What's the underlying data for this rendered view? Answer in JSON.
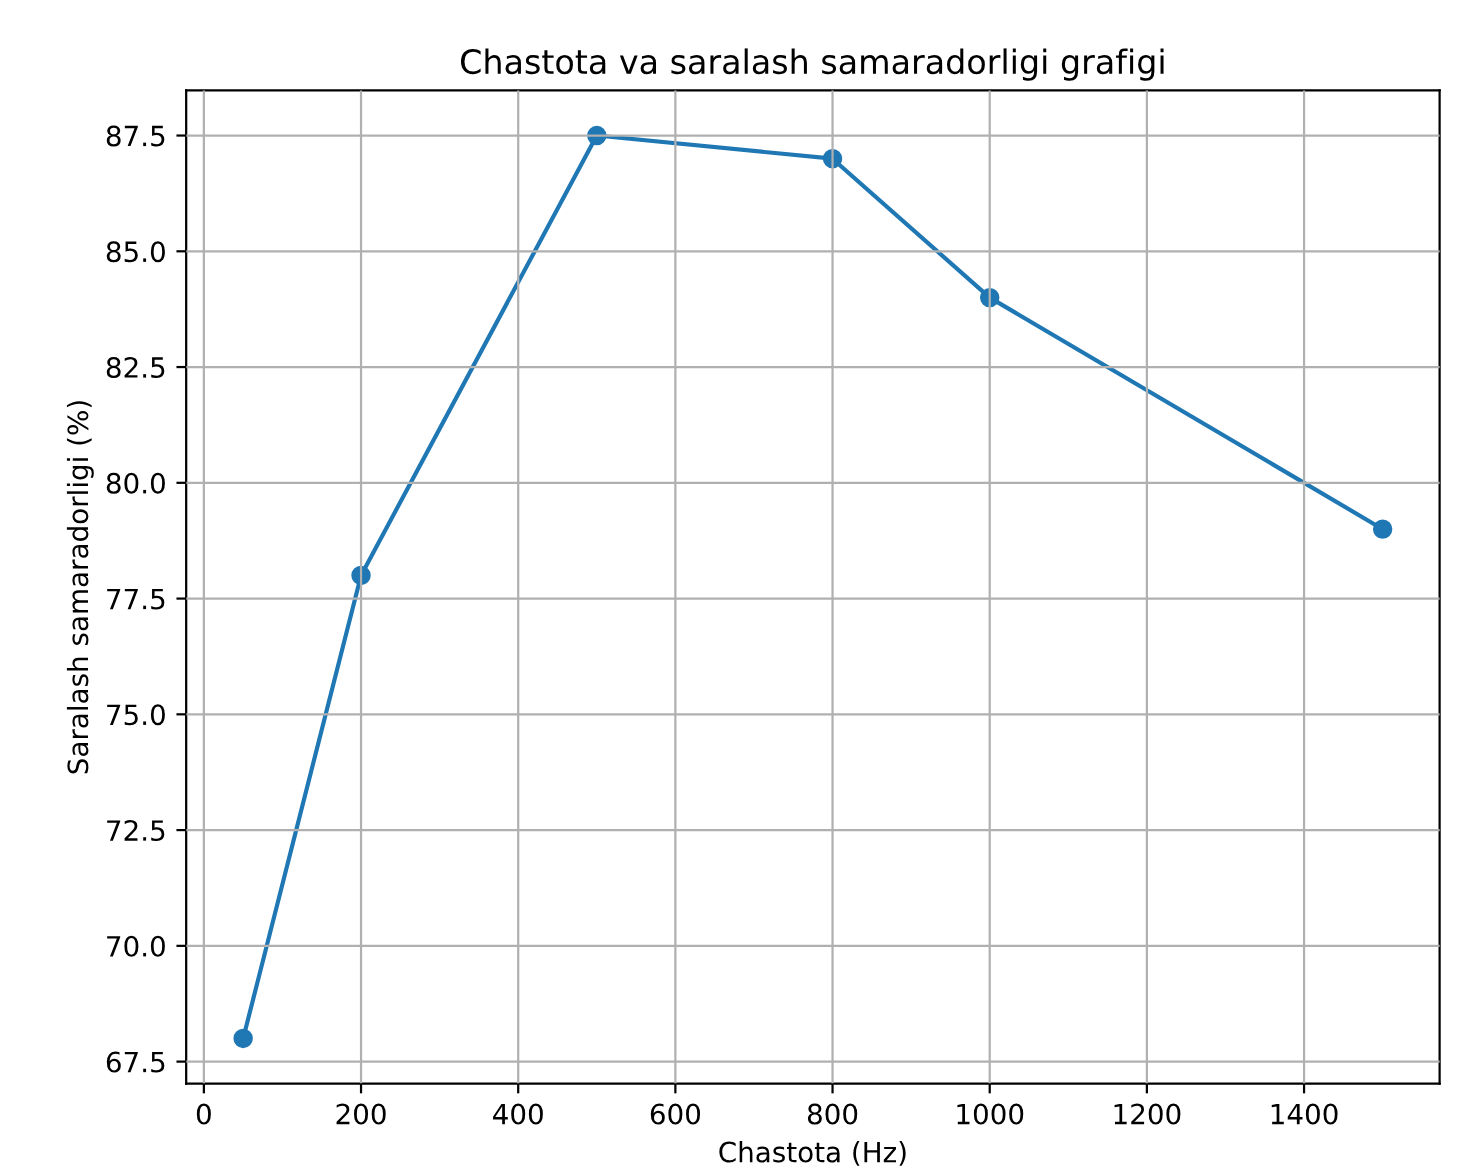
{
  "chart_data": {
    "type": "line",
    "title": "Chastota va saralash samaradorligi grafigi",
    "xlabel": "Chastota (Hz)",
    "ylabel": "Saralash samaradorligi (%)",
    "x": [
      50,
      200,
      500,
      800,
      1000,
      1500
    ],
    "series": [
      {
        "color": "#1f77b4",
        "values": [
          68,
          78,
          87.5,
          87,
          84,
          79
        ]
      }
    ],
    "xlim": [
      -22.5,
      1572.5
    ],
    "xticks": [
      0,
      200,
      400,
      600,
      800,
      1000,
      1200,
      1400
    ],
    "ylim": [
      67.025,
      88.475
    ],
    "yticks": [
      {
        "value": 67.5,
        "label": "67.5"
      },
      {
        "value": 70,
        "label": "70.0"
      },
      {
        "value": 72.5,
        "label": "72.5"
      },
      {
        "value": 75,
        "label": "75.0"
      },
      {
        "value": 77.5,
        "label": "77.5"
      },
      {
        "value": 80,
        "label": "80.0"
      },
      {
        "value": 82.5,
        "label": "82.5"
      },
      {
        "value": 85,
        "label": "85.0"
      },
      {
        "value": 87.5,
        "label": "87.5"
      }
    ],
    "grid": true,
    "marker": "circle",
    "line_style": "solid"
  }
}
